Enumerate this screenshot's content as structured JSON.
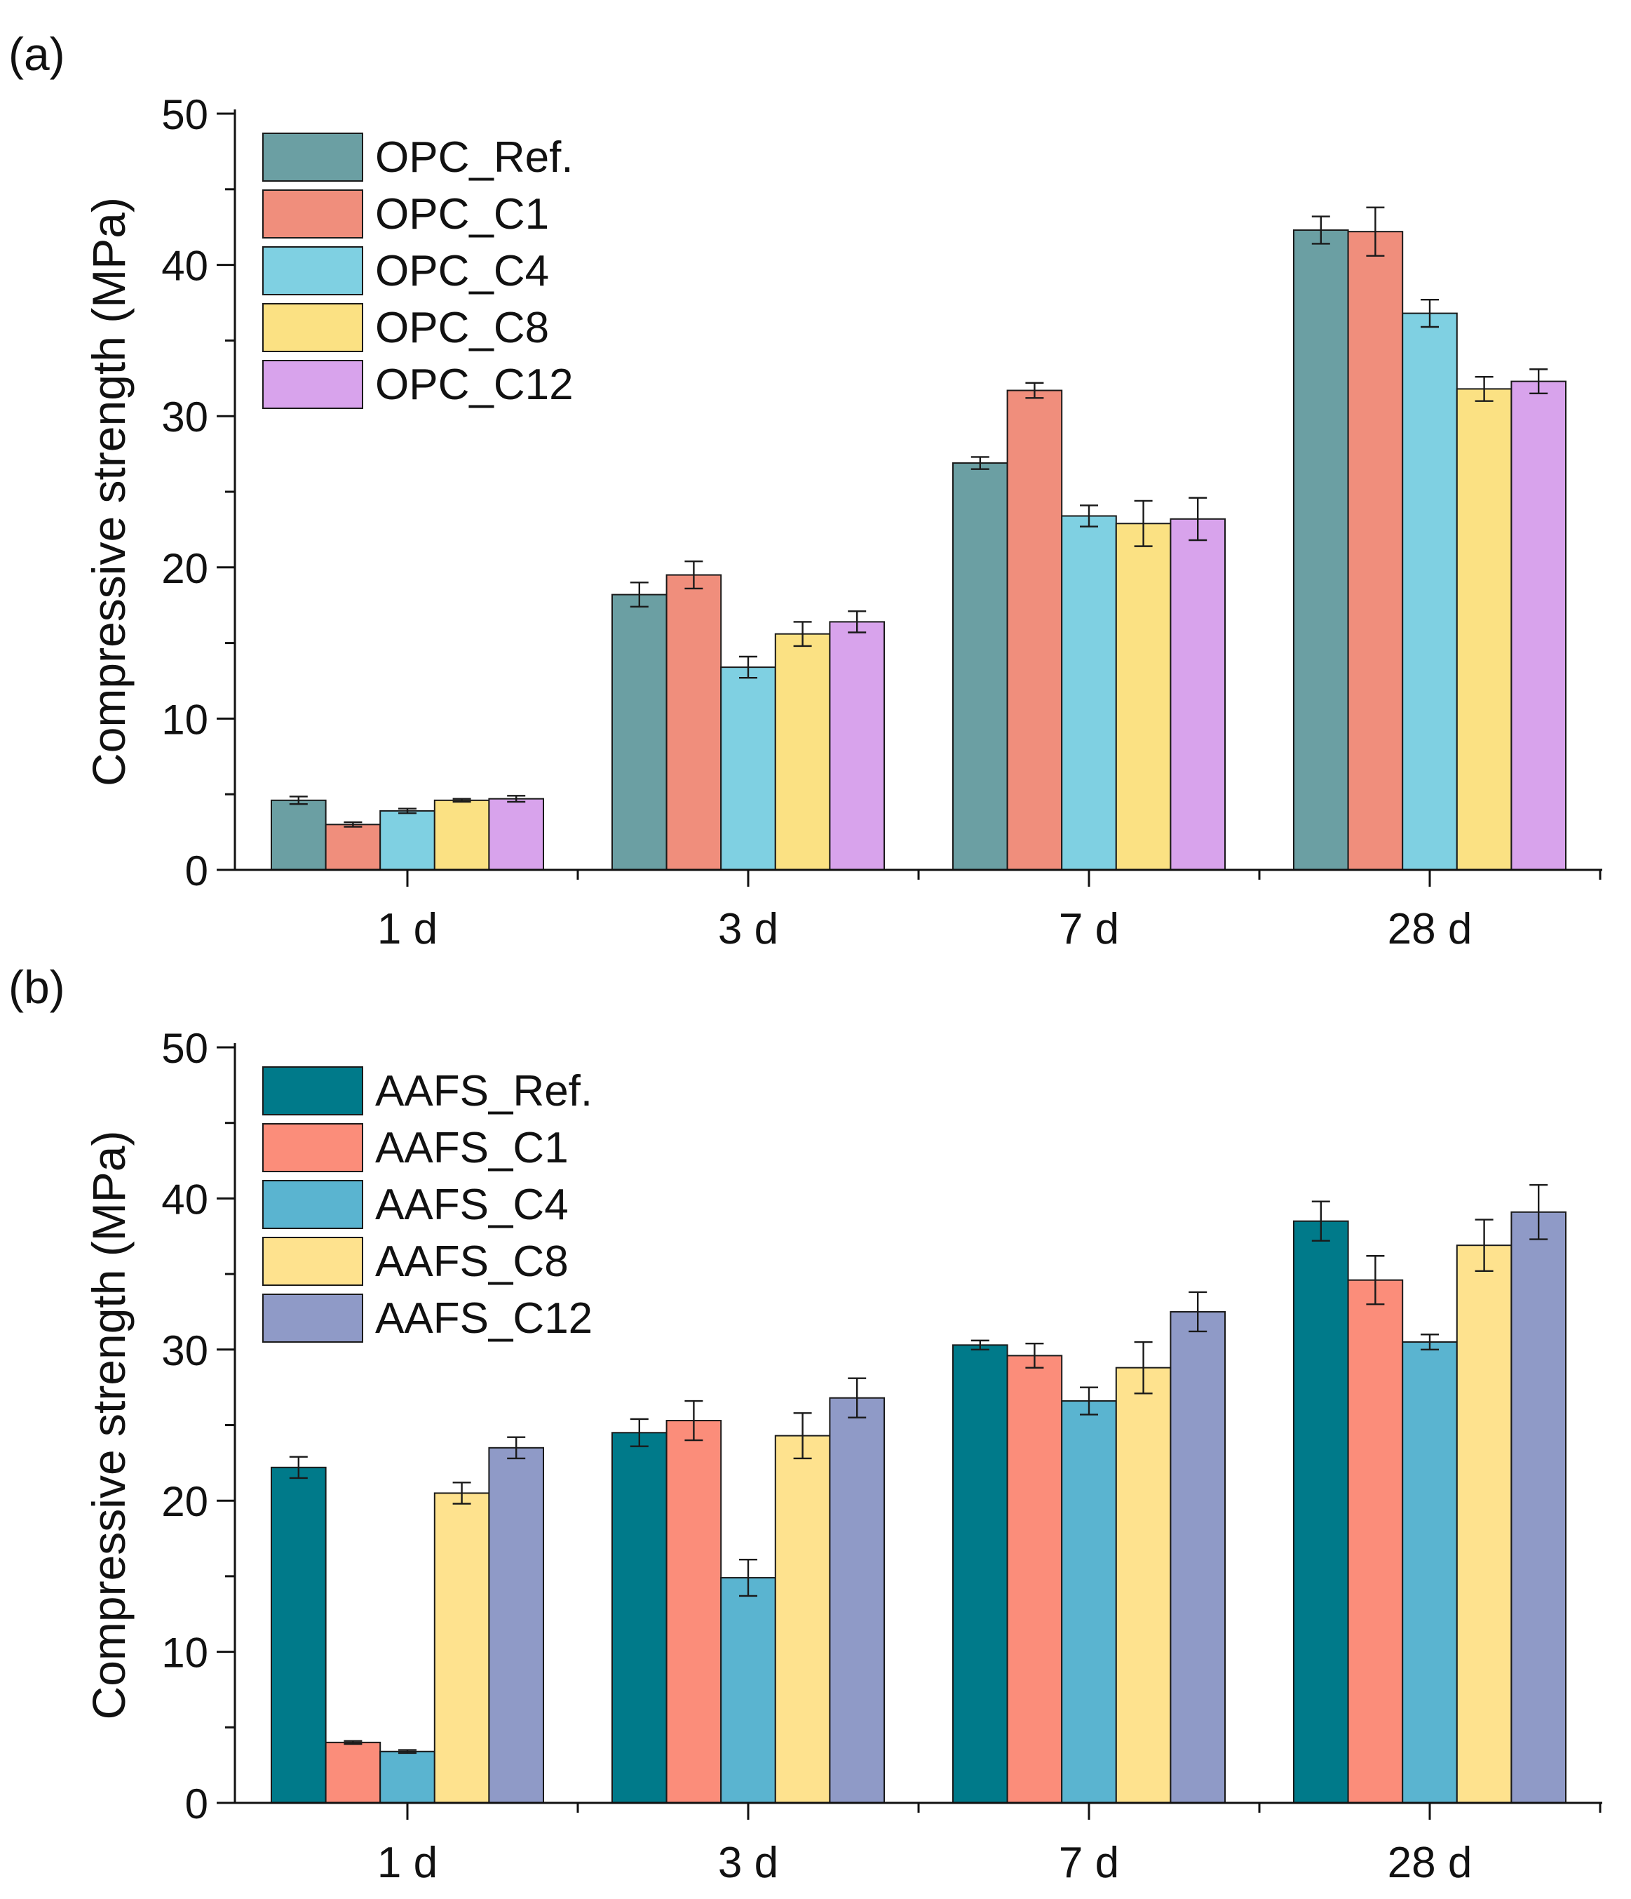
{
  "chart_data": [
    {
      "type": "bar",
      "panel_label": "(a)",
      "categories": [
        "1 d",
        "3 d",
        "7 d",
        "28 d"
      ],
      "ylabel": "Compressive strength (MPa)",
      "xlabel": "",
      "ylim": [
        0,
        50
      ],
      "yticks": [
        "0",
        "10",
        "20",
        "30",
        "40",
        "50"
      ],
      "legend_position": "top-left",
      "series": [
        {
          "name": "OPC_Ref.",
          "color": "#6b9fa3",
          "values": [
            4.6,
            18.2,
            26.9,
            42.3
          ],
          "errors": [
            0.25,
            0.8,
            0.4,
            0.9
          ]
        },
        {
          "name": "OPC_C1",
          "color": "#f08e7c",
          "values": [
            3.0,
            19.5,
            31.7,
            42.2
          ],
          "errors": [
            0.15,
            0.9,
            0.5,
            1.6
          ]
        },
        {
          "name": "OPC_C4",
          "color": "#7fd0e2",
          "values": [
            3.9,
            13.4,
            23.4,
            36.8
          ],
          "errors": [
            0.15,
            0.7,
            0.7,
            0.9
          ]
        },
        {
          "name": "OPC_C8",
          "color": "#fbe183",
          "values": [
            4.6,
            15.6,
            22.9,
            31.8
          ],
          "errors": [
            0.1,
            0.8,
            1.5,
            0.8
          ]
        },
        {
          "name": "OPC_C12",
          "color": "#d8a3ec",
          "values": [
            4.7,
            16.4,
            23.2,
            32.3
          ],
          "errors": [
            0.2,
            0.7,
            1.4,
            0.8
          ]
        }
      ]
    },
    {
      "type": "bar",
      "panel_label": "(b)",
      "categories": [
        "1 d",
        "3 d",
        "7 d",
        "28 d"
      ],
      "ylabel": "Compressive strength (MPa)",
      "xlabel": "",
      "ylim": [
        0,
        50
      ],
      "yticks": [
        "0",
        "10",
        "20",
        "30",
        "40",
        "50"
      ],
      "legend_position": "top-left",
      "series": [
        {
          "name": "AAFS_Ref.",
          "color": "#007a8a",
          "values": [
            22.2,
            24.5,
            30.3,
            38.5
          ],
          "errors": [
            0.7,
            0.9,
            0.3,
            1.3
          ]
        },
        {
          "name": "AAFS_C1",
          "color": "#fb8d7a",
          "values": [
            4.0,
            25.3,
            29.6,
            34.6
          ],
          "errors": [
            0.1,
            1.3,
            0.8,
            1.6
          ]
        },
        {
          "name": "AAFS_C4",
          "color": "#5ab4d0",
          "values": [
            3.4,
            14.9,
            26.6,
            30.5
          ],
          "errors": [
            0.1,
            1.2,
            0.9,
            0.5
          ]
        },
        {
          "name": "AAFS_C8",
          "color": "#fee28e",
          "values": [
            20.5,
            24.3,
            28.8,
            36.9
          ],
          "errors": [
            0.7,
            1.5,
            1.7,
            1.7
          ]
        },
        {
          "name": "AAFS_C12",
          "color": "#8f9ac7",
          "values": [
            23.5,
            26.8,
            32.5,
            39.1
          ],
          "errors": [
            0.7,
            1.3,
            1.3,
            1.8
          ]
        }
      ]
    }
  ]
}
